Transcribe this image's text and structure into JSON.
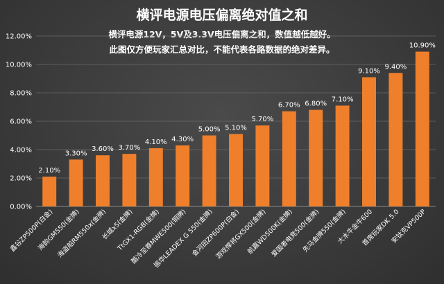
{
  "chart_data": {
    "type": "bar",
    "title": "横评电源电压偏离绝对值之和",
    "subtitle_lines": [
      "横评电源12V，5V及3.3V电压偏离之和，数值越低越好。",
      "此图仅方便玩家汇总对比，不能代表各路数据的绝对差异。"
    ],
    "categories": [
      "鑫谷ZP500P(白金)",
      "海韵GM550(金牌)",
      "海盗船RM550x(金牌)",
      "长城x5(金牌)",
      "TtGX1-RGB(金牌)",
      "酷冷至尊MWE500(铜牌)",
      "振华LEADEX G 550(金牌)",
      "金河田ZP600P(白金)",
      "游戏悍将GX500(金牌)",
      "航嘉WD500K(金牌)",
      "爱国者电竞500(金牌)",
      "先马金牌550(金牌)",
      "大水牛金牛600",
      "首席玩家DK 5.0",
      "安钛克VP500P"
    ],
    "values": [
      2.1,
      3.3,
      3.6,
      3.7,
      4.1,
      4.3,
      5.0,
      5.1,
      5.7,
      6.7,
      6.8,
      7.1,
      9.1,
      9.4,
      10.9
    ],
    "value_labels": [
      "2.10%",
      "3.30%",
      "3.60%",
      "3.70%",
      "4.10%",
      "4.30%",
      "5.00%",
      "5.10%",
      "5.70%",
      "6.70%",
      "6.80%",
      "7.10%",
      "9.10%",
      "9.40%",
      "10.90%"
    ],
    "ylim": [
      0,
      12
    ],
    "yticks": [
      0,
      2,
      4,
      6,
      8,
      10,
      12
    ],
    "ytick_labels": [
      "0.00%",
      "2.00%",
      "4.00%",
      "6.00%",
      "8.00%",
      "10.00%",
      "12.00%"
    ],
    "grid": true,
    "legend": "none",
    "colors": {
      "bar": "#ef7f2b",
      "background": "#3d3d3d",
      "text": "#ffffff",
      "grid": "#6a6a6a"
    }
  }
}
